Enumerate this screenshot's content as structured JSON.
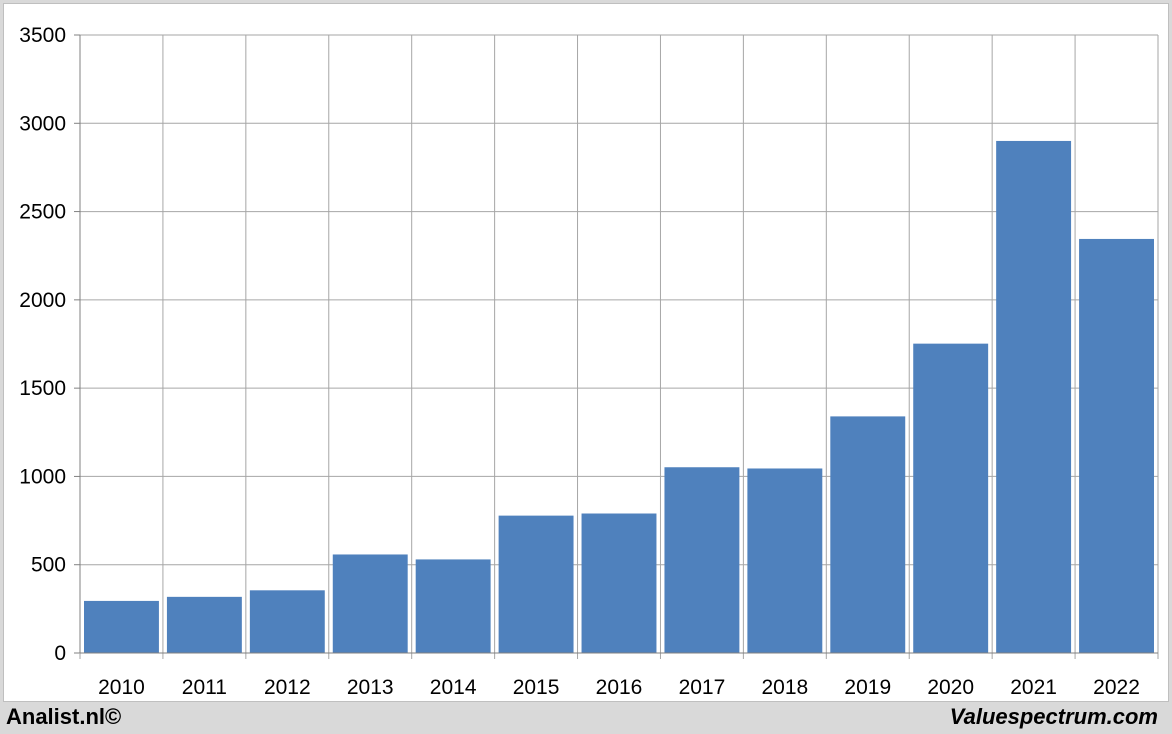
{
  "chart_data": {
    "type": "bar",
    "categories": [
      "2010",
      "2011",
      "2012",
      "2013",
      "2014",
      "2015",
      "2016",
      "2017",
      "2018",
      "2019",
      "2020",
      "2021",
      "2022"
    ],
    "values": [
      295,
      318,
      355,
      558,
      530,
      778,
      790,
      1052,
      1045,
      1340,
      1752,
      2900,
      2345
    ],
    "title": "",
    "xlabel": "",
    "ylabel": "",
    "ylim": [
      0,
      3500
    ],
    "yticks": [
      0,
      500,
      1000,
      1500,
      2000,
      2500,
      3000,
      3500
    ],
    "grid": true,
    "bar_color": "#4f81bd",
    "legend": "none"
  },
  "footer": {
    "left": "Analist.nl©",
    "right": "Valuespectrum.com"
  }
}
